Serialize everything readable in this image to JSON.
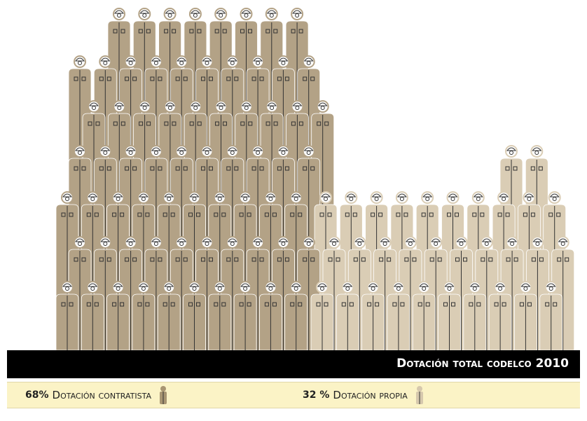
{
  "banner": {
    "title": "Dotación total codelco 2010"
  },
  "legend": [
    {
      "value": "68%",
      "label": "Dotación contratista"
    },
    {
      "value": "32 %",
      "label": "Dotación propia"
    }
  ]
}
